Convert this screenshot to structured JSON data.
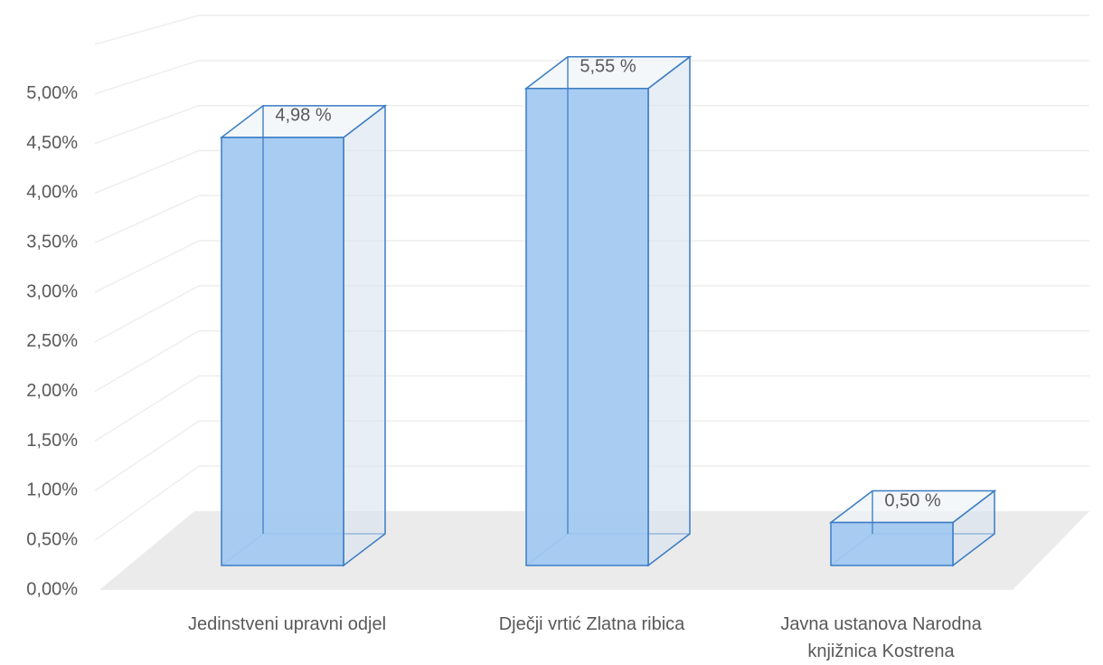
{
  "chart_data": {
    "type": "bar3d",
    "categories": [
      "Jedinstveni upravni odjel",
      "Dječji vrtić Zlatna ribica",
      "Javna ustanova Narodna knjižnica Kostrena"
    ],
    "values": [
      4.98,
      5.55,
      0.5
    ],
    "value_labels": [
      "4,98 %",
      "5,55 %",
      "0,50 %"
    ],
    "color": "#a3c9f1",
    "ylim": [
      0,
      5.5
    ],
    "yticks": [
      {
        "value": 0,
        "label": "0,00%"
      },
      {
        "value": 0.5,
        "label": "0,50%"
      },
      {
        "value": 1,
        "label": "1,00%"
      },
      {
        "value": 1.5,
        "label": "1,50%"
      },
      {
        "value": 2,
        "label": "2,00%"
      },
      {
        "value": 2.5,
        "label": "2,50%"
      },
      {
        "value": 3,
        "label": "3,00%"
      },
      {
        "value": 3.5,
        "label": "3,50%"
      },
      {
        "value": 4,
        "label": "4,00%"
      },
      {
        "value": 4.5,
        "label": "4,50%"
      },
      {
        "value": 5,
        "label": "5,00%"
      }
    ],
    "grid": true
  }
}
